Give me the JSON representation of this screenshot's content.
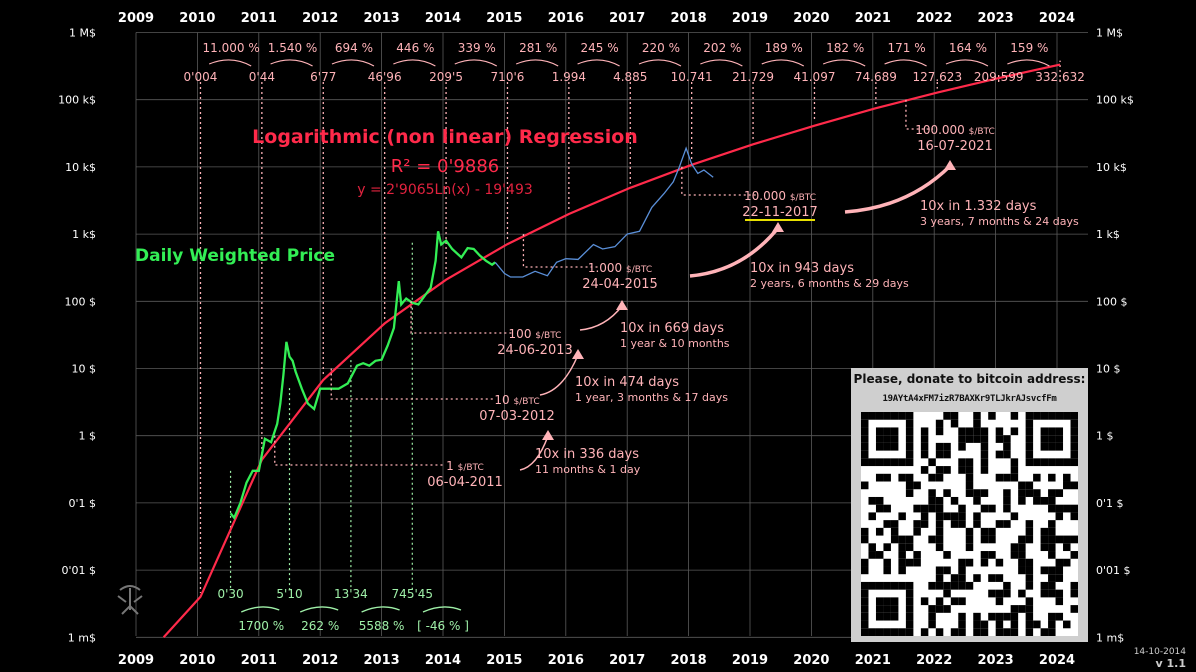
{
  "chart_data": {
    "type": "line",
    "title": "Logarithmic (non linear) Regression",
    "r_squared": "R² = 0'9886",
    "equation": "y = 2'9065Ln(x) - 19'493",
    "series_label": "Daily Weighted Price",
    "y_scale": "log",
    "years": [
      "2009",
      "2010",
      "2011",
      "2012",
      "2013",
      "2014",
      "2015",
      "2016",
      "2017",
      "2018",
      "2019",
      "2020",
      "2021",
      "2022",
      "2023",
      "2024"
    ],
    "y_ticks": [
      "1 M$",
      "100 k$",
      "10 k$",
      "1 k$",
      "100 $",
      "10 $",
      "1 $",
      "0'1 $",
      "0'01 $",
      "1 m$"
    ],
    "ylim_usd": [
      0.001,
      1000000
    ],
    "regression_values": [
      "0'004",
      "0'44",
      "6'77",
      "46'96",
      "209'5",
      "710'6",
      "1.994",
      "4.885",
      "10.741",
      "21.729",
      "41.097",
      "74.689",
      "127.623",
      "209.599",
      "332.632"
    ],
    "growth_percent": [
      "11.000 %",
      "1.540 %",
      "694 %",
      "446 %",
      "339 %",
      "281 %",
      "245 %",
      "220 %",
      "202 %",
      "189 %",
      "182 %",
      "171 %",
      "164 %",
      "159 %"
    ],
    "actual_values": [
      "0'30",
      "5'10",
      "13'34",
      "745'45"
    ],
    "actual_growth": [
      "1700 %",
      "262 %",
      "5588 %",
      "[ -46 % ]"
    ],
    "milestones": [
      {
        "price": "1",
        "unit": "$/BTC",
        "date": "06-04-2011",
        "year": 2011.26,
        "usd": 1
      },
      {
        "price": "10",
        "unit": "$/BTC",
        "date": "07-03-2012",
        "year": 2012.18,
        "usd": 10
      },
      {
        "price": "100",
        "unit": "$/BTC",
        "date": "24-06-2013",
        "year": 2013.48,
        "usd": 100
      },
      {
        "price": "1.000",
        "unit": "$/BTC",
        "date": "24-04-2015",
        "year": 2015.31,
        "usd": 1000
      },
      {
        "price": "10.000",
        "unit": "$/BTC",
        "date": "22-11-2017",
        "year": 2017.89,
        "usd": 10000
      },
      {
        "price": "100.000",
        "unit": "$/BTC",
        "date": "16-07-2021",
        "year": 2021.54,
        "usd": 100000
      }
    ],
    "intervals": [
      {
        "main": "10x in 336 days",
        "sub": "11 months & 1 day"
      },
      {
        "main": "10x in 474 days",
        "sub": "1 year, 3 months & 17 days"
      },
      {
        "main": "10x in 669 days",
        "sub": "1 year & 10 months"
      },
      {
        "main": "10x in 943 days",
        "sub": "2 years, 6 months & 29 days"
      },
      {
        "main": "10x  in 1.332 days",
        "sub": "3 years, 7 months & 24 days"
      }
    ],
    "price_history_history": [
      [
        2010.54,
        0.07
      ],
      [
        2010.6,
        0.06
      ],
      [
        2010.7,
        0.1
      ],
      [
        2010.8,
        0.2
      ],
      [
        2010.9,
        0.3
      ],
      [
        2011.0,
        0.3
      ],
      [
        2011.1,
        0.9
      ],
      [
        2011.2,
        0.8
      ],
      [
        2011.3,
        1.5
      ],
      [
        2011.35,
        3
      ],
      [
        2011.4,
        8
      ],
      [
        2011.45,
        25
      ],
      [
        2011.5,
        15
      ],
      [
        2011.55,
        13
      ],
      [
        2011.6,
        9
      ],
      [
        2011.7,
        5
      ],
      [
        2011.8,
        3
      ],
      [
        2011.9,
        2.5
      ],
      [
        2012.0,
        5
      ],
      [
        2012.1,
        5
      ],
      [
        2012.2,
        5
      ],
      [
        2012.3,
        5
      ],
      [
        2012.45,
        6
      ],
      [
        2012.6,
        11
      ],
      [
        2012.7,
        12
      ],
      [
        2012.8,
        11
      ],
      [
        2012.9,
        13
      ],
      [
        2013.0,
        13.5
      ],
      [
        2013.1,
        22
      ],
      [
        2013.2,
        40
      ],
      [
        2013.28,
        200
      ],
      [
        2013.32,
        90
      ],
      [
        2013.4,
        110
      ],
      [
        2013.5,
        95
      ],
      [
        2013.6,
        90
      ],
      [
        2013.7,
        120
      ],
      [
        2013.8,
        160
      ],
      [
        2013.88,
        400
      ],
      [
        2013.92,
        1100
      ],
      [
        2013.97,
        700
      ],
      [
        2014.05,
        800
      ],
      [
        2014.15,
        600
      ],
      [
        2014.3,
        450
      ],
      [
        2014.4,
        620
      ],
      [
        2014.5,
        600
      ],
      [
        2014.6,
        480
      ],
      [
        2014.7,
        400
      ],
      [
        2014.8,
        350
      ],
      [
        2014.85,
        380
      ]
    ],
    "price_history_later": [
      [
        2014.85,
        380
      ],
      [
        2015.0,
        260
      ],
      [
        2015.1,
        230
      ],
      [
        2015.3,
        230
      ],
      [
        2015.5,
        280
      ],
      [
        2015.7,
        240
      ],
      [
        2015.85,
        380
      ],
      [
        2016.0,
        430
      ],
      [
        2016.2,
        420
      ],
      [
        2016.45,
        700
      ],
      [
        2016.6,
        600
      ],
      [
        2016.8,
        650
      ],
      [
        2017.0,
        1000
      ],
      [
        2017.2,
        1100
      ],
      [
        2017.4,
        2500
      ],
      [
        2017.6,
        4000
      ],
      [
        2017.75,
        6000
      ],
      [
        2017.85,
        10000
      ],
      [
        2017.96,
        19000
      ],
      [
        2018.05,
        11000
      ],
      [
        2018.15,
        8000
      ],
      [
        2018.25,
        9000
      ],
      [
        2018.4,
        7000
      ]
    ]
  },
  "donate": {
    "title": "Please, donate to bitcoin address:",
    "address": "19AYtA4xFM7izR7BAXKr9TLJkrAJsvcfFm"
  },
  "version": {
    "date": "14-10-2014",
    "label": "v 1.1"
  },
  "colors": {
    "regression": "#ff2a4a",
    "annotation": "#ffb3b8",
    "green": "#33ee55",
    "blue": "#5a8fd8",
    "grid": "#5a5a5a",
    "text": "#ffffff"
  }
}
